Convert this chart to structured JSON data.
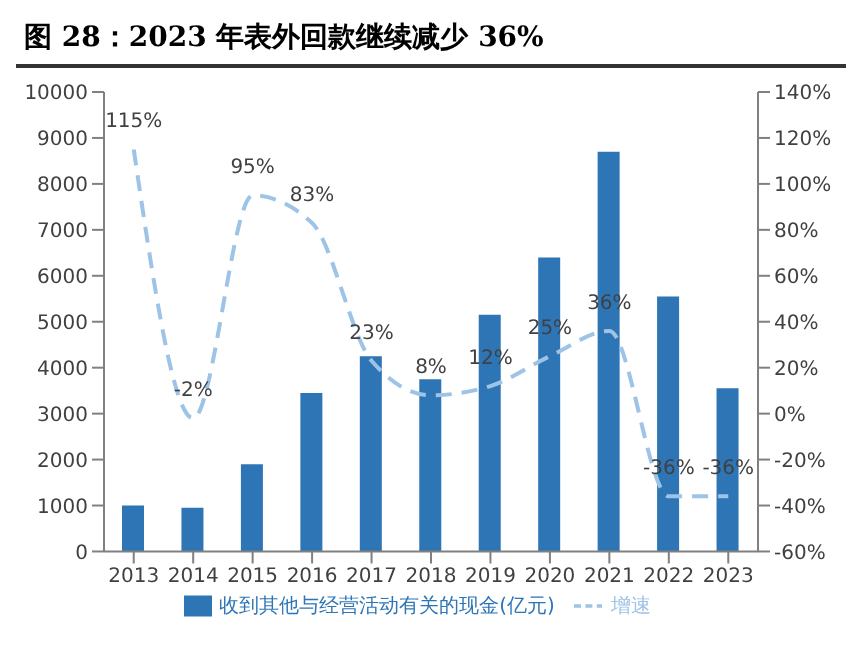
{
  "chart_data": {
    "type": "bar",
    "title": "图 28：2023 年表外回款继续减少 36%",
    "categories": [
      "2013",
      "2014",
      "2015",
      "2016",
      "2017",
      "2018",
      "2019",
      "2020",
      "2021",
      "2022",
      "2023"
    ],
    "series": [
      {
        "name": "收到其他与经营活动有关的现金(亿元)",
        "color": "#2e75b6",
        "values": [
          1000,
          950,
          1900,
          3450,
          4250,
          3750,
          5150,
          6400,
          8700,
          5550,
          3550
        ]
      },
      {
        "name": "增速",
        "type": "line",
        "axis": "y2",
        "color": "#9dc3e6",
        "line_style": "dashed",
        "marker": "none",
        "values": [
          115,
          -2,
          95,
          83,
          23,
          8,
          12,
          25,
          36,
          -36,
          -36
        ],
        "value_labels": [
          "115%",
          "-2%",
          "95%",
          "83%",
          "23%",
          "8%",
          "12%",
          "25%",
          "36%",
          "-36%",
          "-36%"
        ]
      }
    ],
    "ylim": [
      0,
      10000
    ],
    "yticks": [
      0,
      1000,
      2000,
      3000,
      4000,
      5000,
      6000,
      7000,
      8000,
      9000,
      10000
    ],
    "y2lim": [
      -60,
      140
    ],
    "y2ticks": [
      {
        "value": -60,
        "label": "-60%"
      },
      {
        "value": -40,
        "label": "-40%"
      },
      {
        "value": -20,
        "label": "-20%"
      },
      {
        "value": 0,
        "label": "0%"
      },
      {
        "value": 20,
        "label": "20%"
      },
      {
        "value": 40,
        "label": "40%"
      },
      {
        "value": 60,
        "label": "60%"
      },
      {
        "value": 80,
        "label": "80%"
      },
      {
        "value": 100,
        "label": "100%"
      },
      {
        "value": 120,
        "label": "120%"
      },
      {
        "value": 140,
        "label": "140%"
      }
    ],
    "grid": false,
    "legend": "bottom"
  }
}
